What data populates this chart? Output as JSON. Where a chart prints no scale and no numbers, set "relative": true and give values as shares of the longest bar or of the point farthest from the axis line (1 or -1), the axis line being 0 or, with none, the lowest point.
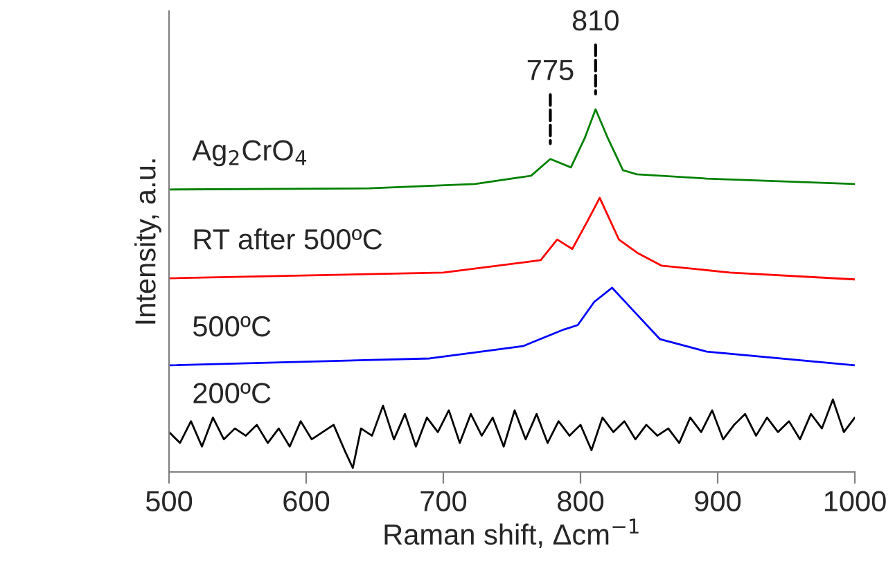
{
  "chart_data": {
    "type": "line",
    "relative": true,
    "xlabel": "Raman shift, Δcm$^{−1}$",
    "ylabel": "Intensity, a.u.",
    "xlim": [
      500,
      1000
    ],
    "xticks": [
      500,
      600,
      700,
      800,
      900,
      1000
    ],
    "grid": false,
    "legend": false,
    "marker": "none",
    "line_style": "solid",
    "series": [
      {
        "name": "Ag$_{2}$CrO$_{4}$",
        "color": "#008000",
        "x": [
          500,
          646,
          723,
          764,
          778,
          793,
          803,
          811,
          820,
          831,
          841,
          892,
          1000
        ],
        "values": [
          0.779,
          0.782,
          0.794,
          0.817,
          0.863,
          0.84,
          0.92,
          1.0,
          0.92,
          0.832,
          0.821,
          0.809,
          0.794
        ]
      },
      {
        "name": "RT after 500ºC",
        "color": "#ff0000",
        "x": [
          500,
          700,
          771,
          783,
          794,
          805,
          814,
          828,
          842,
          859,
          909,
          1000
        ],
        "values": [
          0.534,
          0.55,
          0.584,
          0.641,
          0.615,
          0.691,
          0.756,
          0.641,
          0.603,
          0.569,
          0.55,
          0.531
        ]
      },
      {
        "name": "500ºC",
        "color": "#0000ff",
        "x": [
          500,
          690,
          758,
          788,
          798,
          810,
          823,
          839,
          858,
          892,
          1000
        ],
        "values": [
          0.294,
          0.313,
          0.347,
          0.393,
          0.405,
          0.469,
          0.508,
          0.443,
          0.366,
          0.332,
          0.294
        ]
      },
      {
        "name": "200ºC",
        "color": "#000000",
        "x": [
          500,
          508,
          516,
          524,
          532,
          540,
          548,
          556,
          564,
          572,
          580,
          588,
          596,
          604,
          612,
          620,
          628,
          634,
          640,
          648,
          656,
          664,
          672,
          680,
          688,
          696,
          704,
          712,
          720,
          728,
          736,
          744,
          752,
          760,
          768,
          776,
          784,
          792,
          800,
          808,
          816,
          824,
          832,
          840,
          848,
          856,
          864,
          872,
          880,
          888,
          896,
          904,
          912,
          920,
          928,
          936,
          944,
          952,
          960,
          968,
          976,
          984,
          992,
          1000
        ],
        "values": [
          0.11,
          0.08,
          0.14,
          0.07,
          0.15,
          0.09,
          0.12,
          0.1,
          0.13,
          0.08,
          0.12,
          0.07,
          0.14,
          0.09,
          0.11,
          0.13,
          0.06,
          0.011,
          0.12,
          0.1,
          0.183,
          0.09,
          0.16,
          0.07,
          0.15,
          0.11,
          0.17,
          0.08,
          0.16,
          0.1,
          0.15,
          0.07,
          0.17,
          0.09,
          0.16,
          0.08,
          0.14,
          0.1,
          0.13,
          0.06,
          0.15,
          0.11,
          0.14,
          0.09,
          0.13,
          0.1,
          0.12,
          0.08,
          0.15,
          0.11,
          0.17,
          0.09,
          0.13,
          0.16,
          0.1,
          0.15,
          0.11,
          0.14,
          0.09,
          0.16,
          0.12,
          0.2,
          0.11,
          0.15
        ]
      }
    ],
    "annotations": [
      {
        "text": "775",
        "x": 778,
        "y": 0.863
      },
      {
        "text": "810",
        "x": 811,
        "y": 1.0
      }
    ]
  }
}
